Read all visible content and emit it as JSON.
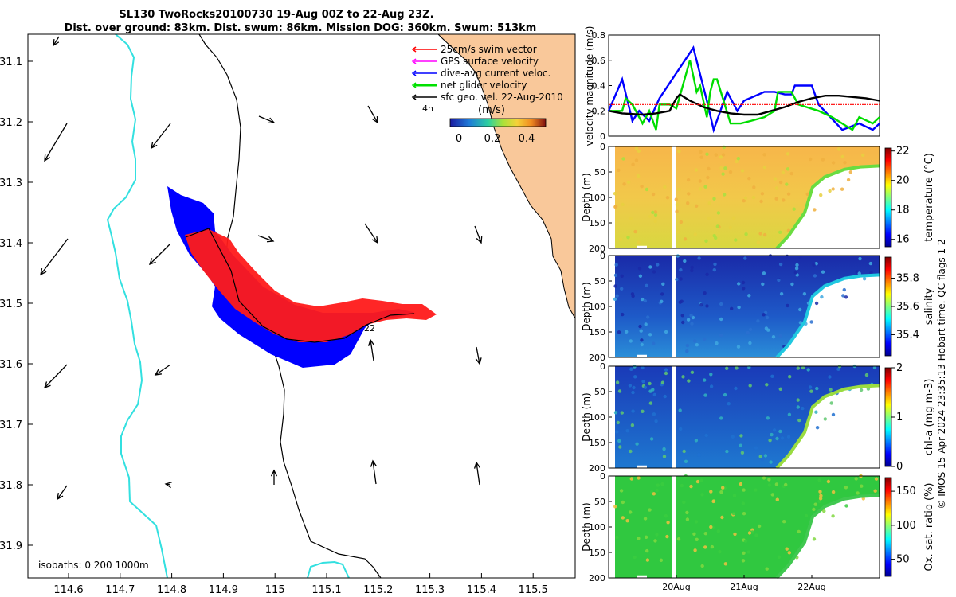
{
  "title_line1": "SL130 TwoRocks20100730 19-Aug 00Z to 22-Aug 23Z.",
  "title_line2": "Dist. over ground: 83km. Dist. swum: 86km. Mission DOG: 360km. Swum: 513km",
  "map": {
    "xticks": [
      "114.6",
      "114.7",
      "114.8",
      "114.9",
      "115",
      "115.1",
      "115.2",
      "115.3",
      "115.4",
      "115.5"
    ],
    "yticks": [
      "31.1",
      "31.2",
      "31.3",
      "31.4",
      "31.5",
      "31.6",
      "31.7",
      "31.8",
      "31.9"
    ],
    "isobaths_label": "isobaths: 0   200  1000m",
    "time_label_4h": "4h",
    "time_label_22": "22",
    "legend": [
      {
        "label": "25cm/s swim vector",
        "color": "#ff0000"
      },
      {
        "label": "GPS surface velocity",
        "color": "#ff00ff"
      },
      {
        "label": "dive-avg current veloc.",
        "color": "#0000ff"
      },
      {
        "label": "net glider velocity",
        "color": "#00e000"
      },
      {
        "label": "sfc geo. vel. 22-Aug-2010",
        "color": "#000000"
      }
    ],
    "colorbar": {
      "label": "(m/s)",
      "ticks": [
        "0",
        "0.2",
        "0.4"
      ]
    },
    "colors": {
      "land": "#f9c89a",
      "isobath_200": "#000000",
      "isobath_1000": "#33e0e0",
      "track": "#0000ff",
      "vectors": "#ff0000"
    }
  },
  "chart_data": [
    {
      "type": "line",
      "title": "",
      "ylabel": "velocity magnitude (m/s)",
      "ylim": [
        0,
        0.8
      ],
      "yticks": [
        "0",
        "0.2",
        "0.4",
        "0.6",
        "0.8"
      ],
      "x_range_days": [
        19.0,
        23.0
      ],
      "series": [
        {
          "color": "#0000ff",
          "x": [
            19.0,
            19.2,
            19.35,
            19.45,
            19.6,
            19.75,
            20.25,
            20.45,
            20.55,
            20.75,
            20.9,
            21.0,
            21.3,
            21.45,
            21.6,
            21.7,
            21.75,
            22.0,
            22.1,
            22.45,
            22.7,
            22.9,
            23.0
          ],
          "y": [
            0.2,
            0.45,
            0.12,
            0.2,
            0.12,
            0.3,
            0.7,
            0.28,
            0.05,
            0.35,
            0.2,
            0.28,
            0.35,
            0.35,
            0.33,
            0.33,
            0.4,
            0.4,
            0.25,
            0.05,
            0.1,
            0.05,
            0.1
          ]
        },
        {
          "color": "#00dd00",
          "x": [
            19.0,
            19.2,
            19.25,
            19.35,
            19.5,
            19.6,
            19.7,
            19.75,
            19.9,
            20.0,
            20.2,
            20.3,
            20.35,
            20.45,
            20.5,
            20.55,
            20.6,
            20.8,
            20.95,
            21.1,
            21.3,
            21.45,
            21.5,
            21.7,
            21.8,
            22.1,
            22.3,
            22.6,
            22.7,
            22.9,
            23.0
          ],
          "y": [
            0.2,
            0.2,
            0.3,
            0.25,
            0.1,
            0.2,
            0.05,
            0.25,
            0.25,
            0.22,
            0.6,
            0.35,
            0.4,
            0.15,
            0.35,
            0.45,
            0.45,
            0.1,
            0.1,
            0.12,
            0.15,
            0.2,
            0.35,
            0.35,
            0.25,
            0.2,
            0.15,
            0.05,
            0.15,
            0.1,
            0.15
          ]
        },
        {
          "color": "#000000",
          "x": [
            19.0,
            19.2,
            19.5,
            19.7,
            19.9,
            20.0,
            20.05,
            20.2,
            20.4,
            20.6,
            20.8,
            21.0,
            21.2,
            21.4,
            21.6,
            21.8,
            22.0,
            22.2,
            22.4,
            22.6,
            22.8,
            23.0
          ],
          "y": [
            0.2,
            0.18,
            0.17,
            0.18,
            0.2,
            0.3,
            0.33,
            0.28,
            0.23,
            0.2,
            0.18,
            0.17,
            0.17,
            0.2,
            0.23,
            0.27,
            0.3,
            0.32,
            0.32,
            0.31,
            0.3,
            0.28
          ]
        },
        {
          "color": "#ff0000",
          "x": [
            19.0,
            23.0
          ],
          "y": [
            0.25,
            0.25
          ]
        }
      ]
    },
    {
      "type": "heatmap",
      "label": "temperature (°C)",
      "ylabel": "Depth (m)",
      "yticks": [
        "0",
        "50",
        "100",
        "150",
        "200"
      ],
      "clim": [
        15.5,
        22.2
      ],
      "cbar_ticks": [
        "16",
        "18",
        "20",
        "22"
      ]
    },
    {
      "type": "heatmap",
      "label": "salinity",
      "ylabel": "Depth (m)",
      "yticks": [
        "0",
        "50",
        "100",
        "150",
        "200"
      ],
      "clim": [
        35.25,
        35.95
      ],
      "cbar_ticks": [
        "35.4",
        "35.6",
        "35.8"
      ]
    },
    {
      "type": "heatmap",
      "label": "chl-a (mg m-3)",
      "ylabel": "Depth (m)",
      "yticks": [
        "0",
        "50",
        "100",
        "150",
        "200"
      ],
      "clim": [
        0,
        2
      ],
      "cbar_ticks": [
        "0",
        "1",
        "2"
      ]
    },
    {
      "type": "heatmap",
      "label": "Ox. sat. ratio (%)",
      "ylabel": "Depth (m)",
      "yticks": [
        "0",
        "50",
        "100",
        "150",
        "200"
      ],
      "clim": [
        25,
        170
      ],
      "cbar_ticks": [
        "50",
        "100",
        "150"
      ],
      "xticks": [
        "20Aug",
        "21Aug",
        "22Aug"
      ]
    }
  ],
  "side_note": "© IMOS 15-Apr-2024 23:35:13 Hobart time. QC flags 1  2"
}
